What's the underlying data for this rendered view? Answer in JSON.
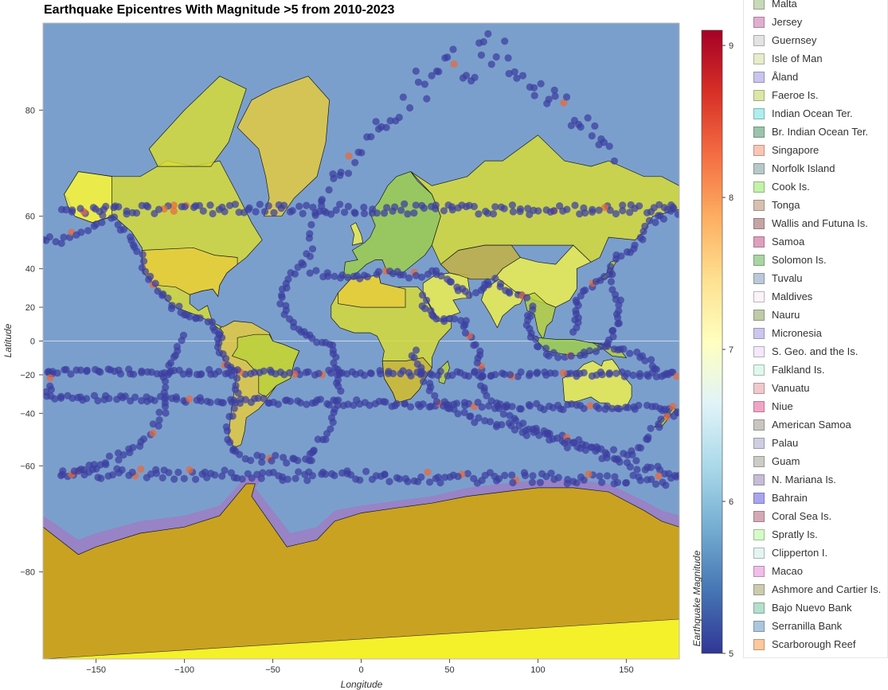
{
  "title": "Earthquake Epicentres With Magnitude >5 from 2010-2023",
  "map": {
    "x_axis": {
      "label": "Longitude",
      "ticks": [
        -150,
        -100,
        -50,
        0,
        50,
        100,
        150
      ],
      "range": [
        -180,
        180
      ]
    },
    "y_axis": {
      "label": "Latitude",
      "ticks": [
        80,
        60,
        40,
        20,
        0,
        -20,
        -40,
        -60,
        -80
      ],
      "range": [
        -90,
        90
      ]
    },
    "ocean_color": "#7b9fcc",
    "land_colors": [
      "#d9dd33",
      "#e8cc3c",
      "#f1f04a",
      "#b9d23a",
      "#9fd049",
      "#c7b23e"
    ],
    "antarctica_color": "#c9a222",
    "antarctica_border_color": "#9a7fc5",
    "point_color": "#3b3fa0"
  },
  "colorbar": {
    "label": "Earthquake Magnitude",
    "min": 5,
    "max": 9.1,
    "ticks": [
      5,
      6,
      7,
      8,
      9
    ],
    "colors": [
      "#313695",
      "#4575b4",
      "#74add1",
      "#abd9e9",
      "#e0f3f8",
      "#ffffbf",
      "#fee090",
      "#fdae61",
      "#f46d43",
      "#d73027",
      "#a50026"
    ]
  },
  "legend": {
    "items": [
      {
        "label": "Malta",
        "color": "#c7d9b8"
      },
      {
        "label": "Jersey",
        "color": "#e0aed0"
      },
      {
        "label": "Guernsey",
        "color": "#e3e3e3"
      },
      {
        "label": "Isle of Man",
        "color": "#e6eccc"
      },
      {
        "label": "Åland",
        "color": "#c8c4ec"
      },
      {
        "label": "Faeroe Is.",
        "color": "#dce6a7"
      },
      {
        "label": "Indian Ocean Ter.",
        "color": "#aeeeee"
      },
      {
        "label": "Br. Indian Ocean Ter.",
        "color": "#9bc3ad"
      },
      {
        "label": "Singapore",
        "color": "#f9c6b5"
      },
      {
        "label": "Norfolk Island",
        "color": "#b7c8c9"
      },
      {
        "label": "Cook Is.",
        "color": "#c3f2a7"
      },
      {
        "label": "Tonga",
        "color": "#d7c0b1"
      },
      {
        "label": "Wallis and Futuna Is.",
        "color": "#c6a4a5"
      },
      {
        "label": "Samoa",
        "color": "#df9fbe"
      },
      {
        "label": "Solomon Is.",
        "color": "#a9d5a2"
      },
      {
        "label": "Tuvalu",
        "color": "#bbc8d7"
      },
      {
        "label": "Maldives",
        "color": "#fcf3f8"
      },
      {
        "label": "Nauru",
        "color": "#bfcaa8"
      },
      {
        "label": "Micronesia",
        "color": "#cdc7ef"
      },
      {
        "label": "S. Geo. and the Is.",
        "color": "#f3e9fa"
      },
      {
        "label": "Falkland Is.",
        "color": "#dff8ec"
      },
      {
        "label": "Vanuatu",
        "color": "#f0c9cd"
      },
      {
        "label": "Niue",
        "color": "#f2a4c4"
      },
      {
        "label": "American Samoa",
        "color": "#c9c5c0"
      },
      {
        "label": "Palau",
        "color": "#cfcde1"
      },
      {
        "label": "Guam",
        "color": "#cccbc6"
      },
      {
        "label": "N. Mariana Is.",
        "color": "#c6bcd7"
      },
      {
        "label": "Bahrain",
        "color": "#a9a4ef"
      },
      {
        "label": "Coral Sea Is.",
        "color": "#d5a9b3"
      },
      {
        "label": "Spratly Is.",
        "color": "#d6fbc8"
      },
      {
        "label": "Clipperton I.",
        "color": "#e4f4f1"
      },
      {
        "label": "Macao",
        "color": "#f2bdea"
      },
      {
        "label": "Ashmore and Cartier Is.",
        "color": "#cccbaf"
      },
      {
        "label": "Bajo Nuevo Bank",
        "color": "#b4dfcd"
      },
      {
        "label": "Serranilla Bank",
        "color": "#acc6dd"
      },
      {
        "label": "Scarborough Reef",
        "color": "#fcc89d"
      }
    ]
  }
}
